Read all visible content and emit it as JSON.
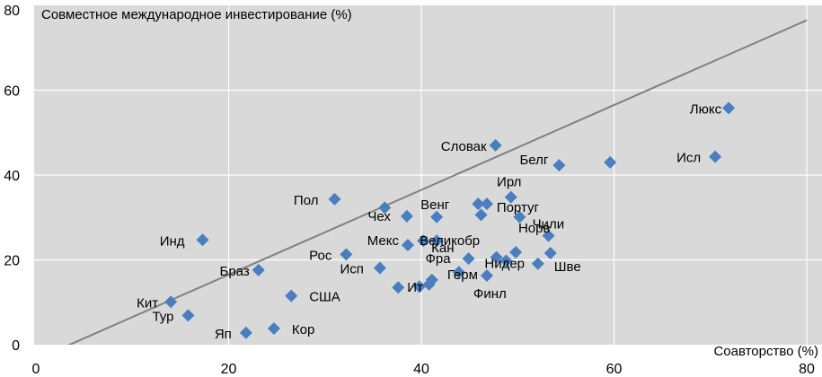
{
  "chart_data": {
    "type": "scatter",
    "ylabel": "Совместное международное инвестирование (%)",
    "xlabel": "Соавторство (%)",
    "xlim": [
      0,
      80
    ],
    "ylim": [
      0,
      80
    ],
    "x_ticks": [
      "0",
      "20",
      "40",
      "60",
      "80"
    ],
    "y_ticks": [
      "0",
      "20",
      "40",
      "60",
      "80"
    ],
    "grid": true,
    "marker_color": "#4a7ebf",
    "plot_background": "#d9d9d9",
    "trendline_color": "#808080",
    "trendline": {
      "start": [
        0,
        -3.5
      ],
      "end": [
        80,
        76.5
      ]
    },
    "points": [
      {
        "label": "Люкс",
        "x": 71.9,
        "y": 55.8
      },
      {
        "label": "Словак",
        "x": 47.7,
        "y": 47.0
      },
      {
        "label": "Белг",
        "x": 54.3,
        "y": 42.3
      },
      {
        "label": "",
        "x": 59.6,
        "y": 43.0
      },
      {
        "label": "Исл",
        "x": 70.5,
        "y": 44.3
      },
      {
        "label": "Ирл",
        "x": 49.3,
        "y": 34.8
      },
      {
        "label": "Пол",
        "x": 31.0,
        "y": 34.3
      },
      {
        "label": "",
        "x": 36.2,
        "y": 32.3
      },
      {
        "label": "Чех",
        "x": 38.5,
        "y": 30.3
      },
      {
        "label": "Венг",
        "x": 41.6,
        "y": 30.1
      },
      {
        "label": "",
        "x": 45.9,
        "y": 33.2
      },
      {
        "label": "",
        "x": 46.8,
        "y": 33.2
      },
      {
        "label": "",
        "x": 46.2,
        "y": 30.6
      },
      {
        "label": "Португ",
        "x": 50.2,
        "y": 30.1
      },
      {
        "label": "Кан",
        "x": 41.6,
        "y": 24.5
      },
      {
        "label": "Чили",
        "x": 53.2,
        "y": 25.7
      },
      {
        "label": "Инд",
        "x": 17.3,
        "y": 24.7
      },
      {
        "label": "Мекс",
        "x": 38.6,
        "y": 23.5
      },
      {
        "label": "Великобр",
        "x": 40.2,
        "y": 24.5
      },
      {
        "label": "Норв",
        "x": 53.4,
        "y": 21.6
      },
      {
        "label": "",
        "x": 49.8,
        "y": 21.8
      },
      {
        "label": "Рос",
        "x": 32.2,
        "y": 21.3
      },
      {
        "label": "Фра",
        "x": 44.9,
        "y": 20.3
      },
      {
        "label": "",
        "x": 47.8,
        "y": 20.6
      },
      {
        "label": "Нидер",
        "x": 48.8,
        "y": 19.8
      },
      {
        "label": "Шве",
        "x": 52.1,
        "y": 19.1
      },
      {
        "label": "Исп",
        "x": 35.7,
        "y": 18.1
      },
      {
        "label": "Браз",
        "x": 23.1,
        "y": 17.6
      },
      {
        "label": "Герм",
        "x": 43.9,
        "y": 17.1
      },
      {
        "label": "",
        "x": 41.1,
        "y": 15.3
      },
      {
        "label": "",
        "x": 40.8,
        "y": 14.2
      },
      {
        "label": "Ит",
        "x": 37.6,
        "y": 13.5
      },
      {
        "label": "",
        "x": 39.8,
        "y": 13.7
      },
      {
        "label": "Финл",
        "x": 46.8,
        "y": 16.3
      },
      {
        "label": "США",
        "x": 26.5,
        "y": 11.5
      },
      {
        "label": "Кит",
        "x": 14.0,
        "y": 10.1
      },
      {
        "label": "Тур",
        "x": 15.8,
        "y": 6.9
      },
      {
        "label": "Кор",
        "x": 24.7,
        "y": 3.8
      },
      {
        "label": "Яп",
        "x": 21.8,
        "y": 2.8
      }
    ]
  }
}
